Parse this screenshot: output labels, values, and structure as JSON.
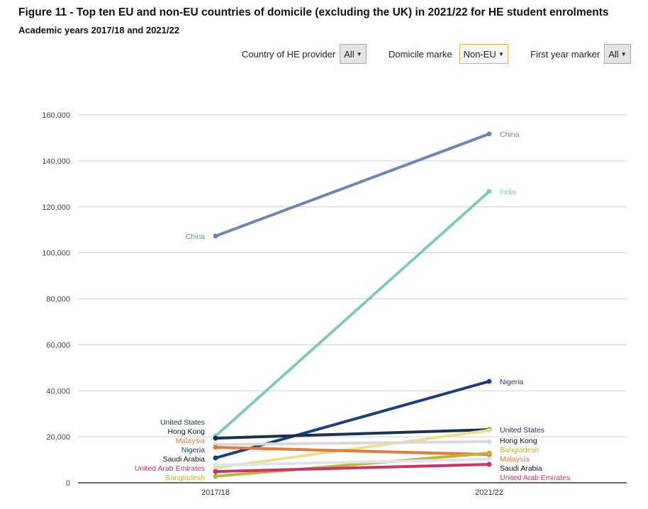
{
  "header": {
    "title": "Figure 11 - Top ten EU and non-EU countries of domicile (excluding the UK) in 2021/22 for HE student enrolments",
    "subtitle": "Academic years 2017/18 and 2021/22"
  },
  "filters": [
    {
      "label": "Country of HE provider",
      "value": "All"
    },
    {
      "label": "Domicile marke",
      "value": "Non-EU"
    },
    {
      "label": "First year marker",
      "value": "All"
    }
  ],
  "chart_data": {
    "type": "line",
    "categories": [
      "2017/18",
      "2021/22"
    ],
    "ylim": [
      0,
      160000
    ],
    "yticks": [
      "0",
      "20,000",
      "40,000",
      "60,000",
      "80,000",
      "100,000",
      "120,000",
      "140,000",
      "160,000"
    ],
    "grid": true,
    "series": [
      {
        "name": "China",
        "values": [
          107300,
          151700
        ],
        "color": "#6f86b2"
      },
      {
        "name": "India",
        "values": [
          20300,
          126700
        ],
        "color": "#7fc9bf",
        "hide_left_label": true
      },
      {
        "name": "Nigeria",
        "values": [
          10800,
          44100
        ],
        "color": "#1f3f7a"
      },
      {
        "name": "United States",
        "values": [
          19400,
          23100
        ],
        "color": "#1b2f52"
      },
      {
        "name": "",
        "values": [
          6500,
          22800
        ],
        "color": "#ece08f"
      },
      {
        "name": "Hong Kong",
        "values": [
          16600,
          17900
        ],
        "color": "#d9d9d9",
        "label_color": "#111111"
      },
      {
        "name": "Malaysia",
        "values": [
          15400,
          12300
        ],
        "color": "#e07b39"
      },
      {
        "name": "Bangladesh",
        "values": [
          2800,
          12900
        ],
        "color": "#bfb43a"
      },
      {
        "name": "Saudi Arabia",
        "values": [
          7700,
          10200
        ],
        "color": "#e0e4ea",
        "label_color": "#111111"
      },
      {
        "name": "United Arab Emirates",
        "values": [
          4900,
          8000
        ],
        "color": "#cc3366"
      }
    ]
  }
}
